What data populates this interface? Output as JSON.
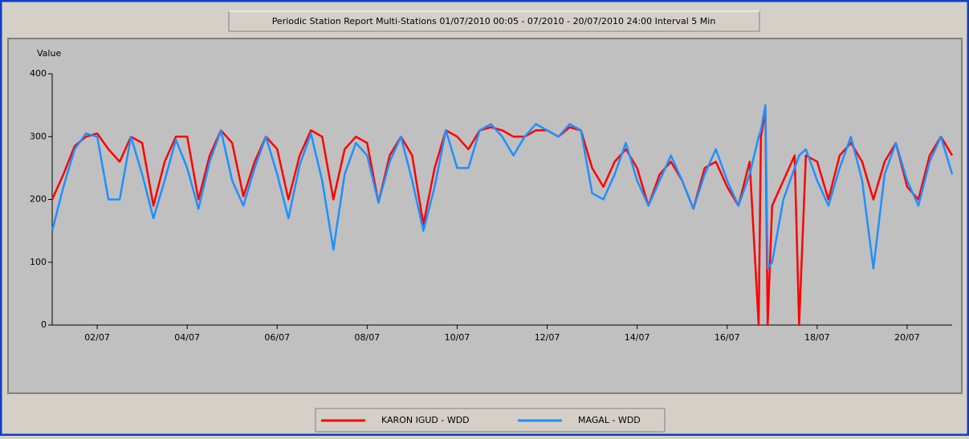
{
  "chart_data": {
    "type": "line",
    "title": "Periodic Station Report Multi-Stations 01/07/2010 00:05 - 07/2010 - 20/07/2010 24:00 Interval 5 Min",
    "y_label": "Value",
    "x": [
      1,
      1.25,
      1.5,
      1.75,
      2,
      2.25,
      2.5,
      2.75,
      3,
      3.25,
      3.5,
      3.75,
      4,
      4.25,
      4.5,
      4.75,
      5,
      5.25,
      5.5,
      5.75,
      6,
      6.25,
      6.5,
      6.75,
      7,
      7.25,
      7.5,
      7.75,
      8,
      8.25,
      8.5,
      8.75,
      9,
      9.25,
      9.5,
      9.75,
      10,
      10.25,
      10.5,
      10.75,
      11,
      11.25,
      11.5,
      11.75,
      12,
      12.25,
      12.5,
      12.75,
      13,
      13.25,
      13.5,
      13.75,
      14,
      14.25,
      14.5,
      14.75,
      15,
      15.25,
      15.5,
      15.75,
      16,
      16.25,
      16.5,
      16.7,
      16.75,
      16.85,
      16.9,
      17,
      17.25,
      17.5,
      17.6,
      17.75,
      18,
      18.25,
      18.5,
      18.75,
      19,
      19.25,
      19.5,
      19.75,
      20,
      20.25,
      20.5,
      20.75,
      21
    ],
    "series": [
      {
        "name": "KARON IGUD - WDD",
        "color": "#ff0000",
        "values": [
          200,
          240,
          285,
          300,
          305,
          280,
          260,
          300,
          290,
          190,
          260,
          300,
          300,
          200,
          270,
          310,
          290,
          205,
          260,
          300,
          280,
          200,
          270,
          310,
          300,
          200,
          280,
          300,
          290,
          195,
          270,
          300,
          270,
          160,
          250,
          310,
          300,
          280,
          310,
          315,
          310,
          300,
          300,
          310,
          310,
          300,
          315,
          310,
          250,
          220,
          260,
          280,
          250,
          190,
          240,
          260,
          230,
          185,
          250,
          260,
          220,
          190,
          260,
          0,
          300,
          340,
          0,
          190,
          230,
          270,
          0,
          270,
          260,
          200,
          270,
          290,
          260,
          200,
          260,
          290,
          220,
          200,
          270,
          300,
          270
        ]
      },
      {
        "name": "MAGAL - WDD",
        "color": "#1e90ff",
        "values": [
          150,
          220,
          280,
          305,
          300,
          200,
          200,
          300,
          240,
          170,
          230,
          295,
          250,
          185,
          260,
          310,
          230,
          190,
          250,
          300,
          240,
          170,
          255,
          305,
          230,
          120,
          240,
          290,
          270,
          195,
          260,
          300,
          230,
          150,
          220,
          310,
          250,
          250,
          310,
          320,
          300,
          270,
          300,
          320,
          310,
          300,
          320,
          310,
          210,
          200,
          240,
          290,
          230,
          190,
          230,
          270,
          230,
          185,
          240,
          280,
          230,
          190,
          240,
          300,
          310,
          350,
          90,
          100,
          200,
          250,
          270,
          280,
          230,
          190,
          250,
          300,
          230,
          90,
          240,
          290,
          230,
          190,
          260,
          300,
          240
        ]
      }
    ],
    "xlim": [
      1,
      21
    ],
    "xticks": [
      {
        "value": 2,
        "label": "02/07"
      },
      {
        "value": 4,
        "label": "04/07"
      },
      {
        "value": 6,
        "label": "06/07"
      },
      {
        "value": 8,
        "label": "08/07"
      },
      {
        "value": 10,
        "label": "10/07"
      },
      {
        "value": 12,
        "label": "12/07"
      },
      {
        "value": 14,
        "label": "14/07"
      },
      {
        "value": 16,
        "label": "16/07"
      },
      {
        "value": 18,
        "label": "18/07"
      },
      {
        "value": 20,
        "label": "20/07"
      }
    ],
    "ylim": [
      0,
      400
    ],
    "yticks": [
      0,
      100,
      200,
      300,
      400
    ]
  }
}
